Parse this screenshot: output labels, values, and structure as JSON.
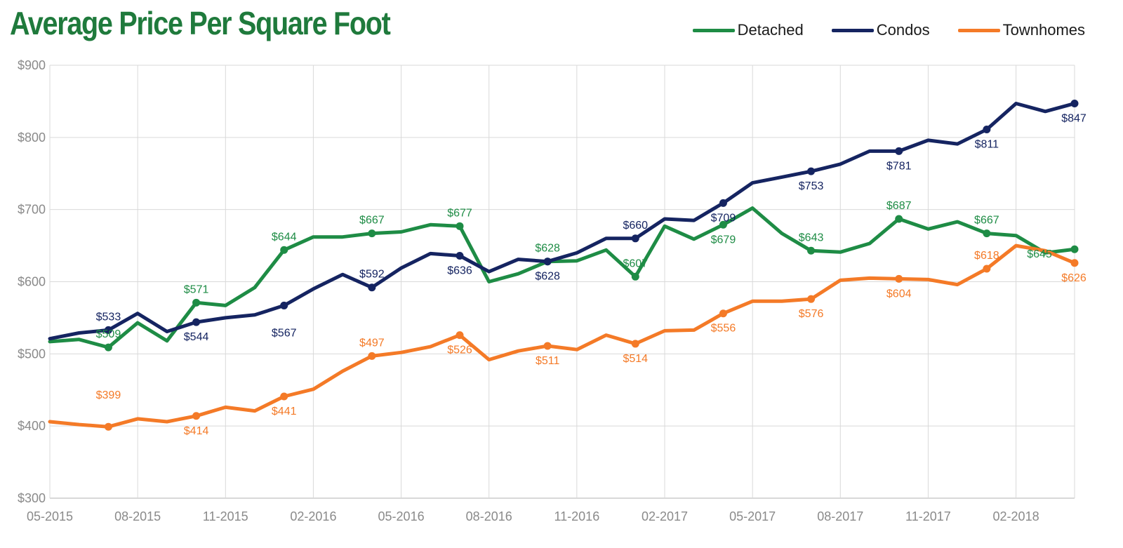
{
  "chart_data": {
    "type": "line",
    "title": "Average Price Per Square Foot",
    "xlabel": "",
    "ylabel": "",
    "ylim": [
      300,
      900
    ],
    "y_ticks": [
      300,
      400,
      500,
      600,
      700,
      800,
      900
    ],
    "y_tick_labels": [
      "$300",
      "$400",
      "$500",
      "$600",
      "$700",
      "$800",
      "$900"
    ],
    "x": [
      "05-2015",
      "06-2015",
      "07-2015",
      "08-2015",
      "09-2015",
      "10-2015",
      "11-2015",
      "12-2015",
      "01-2016",
      "02-2016",
      "03-2016",
      "04-2016",
      "05-2016",
      "06-2016",
      "07-2016",
      "08-2016",
      "09-2016",
      "10-2016",
      "11-2016",
      "12-2016",
      "01-2017",
      "02-2017",
      "03-2017",
      "04-2017",
      "05-2017",
      "06-2017",
      "07-2017",
      "08-2017",
      "09-2017",
      "10-2017",
      "11-2017",
      "12-2017",
      "01-2018",
      "02-2018",
      "03-2018",
      "04-2018"
    ],
    "x_tick_labels": [
      "05-2015",
      "08-2015",
      "11-2015",
      "02-2016",
      "05-2016",
      "08-2016",
      "11-2016",
      "02-2017",
      "05-2017",
      "08-2017",
      "11-2017",
      "02-2018"
    ],
    "grid": true,
    "legend_position": "top-right",
    "series": [
      {
        "name": "Detached",
        "color": "#1e8c45",
        "values": [
          517,
          520,
          509,
          543,
          518,
          571,
          567,
          592,
          644,
          662,
          662,
          667,
          669,
          679,
          677,
          600,
          611,
          628,
          629,
          644,
          607,
          677,
          659,
          679,
          702,
          667,
          643,
          641,
          653,
          687,
          673,
          683,
          667,
          664,
          640,
          645
        ],
        "labels": [
          {
            "i": 2,
            "text": "$509",
            "pos": "above"
          },
          {
            "i": 5,
            "text": "$571",
            "pos": "above"
          },
          {
            "i": 8,
            "text": "$644",
            "pos": "above"
          },
          {
            "i": 11,
            "text": "$667",
            "pos": "above"
          },
          {
            "i": 14,
            "text": "$677",
            "pos": "above"
          },
          {
            "i": 17,
            "text": "$628",
            "pos": "above"
          },
          {
            "i": 20,
            "text": "$607",
            "pos": "above"
          },
          {
            "i": 23,
            "text": "$679",
            "pos": "below"
          },
          {
            "i": 26,
            "text": "$643",
            "pos": "above"
          },
          {
            "i": 29,
            "text": "$687",
            "pos": "above"
          },
          {
            "i": 32,
            "text": "$667",
            "pos": "above"
          },
          {
            "i": 35,
            "text": "$645",
            "pos": "below-left"
          }
        ]
      },
      {
        "name": "Condos",
        "color": "#152461",
        "values": [
          521,
          529,
          533,
          556,
          531,
          544,
          550,
          554,
          567,
          590,
          610,
          592,
          619,
          639,
          636,
          614,
          631,
          628,
          640,
          660,
          660,
          687,
          685,
          709,
          737,
          745,
          753,
          763,
          781,
          781,
          796,
          791,
          811,
          847,
          836,
          847
        ],
        "labels": [
          {
            "i": 2,
            "text": "$533",
            "pos": "above"
          },
          {
            "i": 5,
            "text": "$544",
            "pos": "below"
          },
          {
            "i": 8,
            "text": "$567",
            "pos": "below-far"
          },
          {
            "i": 11,
            "text": "$592",
            "pos": "above"
          },
          {
            "i": 14,
            "text": "$636",
            "pos": "below"
          },
          {
            "i": 17,
            "text": "$628",
            "pos": "below"
          },
          {
            "i": 20,
            "text": "$660",
            "pos": "above"
          },
          {
            "i": 23,
            "text": "$709",
            "pos": "below"
          },
          {
            "i": 26,
            "text": "$753",
            "pos": "below"
          },
          {
            "i": 29,
            "text": "$781",
            "pos": "below"
          },
          {
            "i": 32,
            "text": "$811",
            "pos": "below"
          },
          {
            "i": 35,
            "text": "$847",
            "pos": "below"
          }
        ]
      },
      {
        "name": "Townhomes",
        "color": "#f47a27",
        "values": [
          406,
          402,
          399,
          410,
          406,
          414,
          426,
          421,
          441,
          451,
          476,
          497,
          502,
          510,
          526,
          492,
          504,
          511,
          506,
          526,
          514,
          532,
          533,
          556,
          573,
          573,
          576,
          602,
          605,
          604,
          603,
          596,
          618,
          650,
          643,
          626
        ],
        "labels": [
          {
            "i": 2,
            "text": "$399",
            "pos": "above-far"
          },
          {
            "i": 5,
            "text": "$414",
            "pos": "below"
          },
          {
            "i": 8,
            "text": "$441",
            "pos": "below"
          },
          {
            "i": 11,
            "text": "$497",
            "pos": "above"
          },
          {
            "i": 14,
            "text": "$526",
            "pos": "below"
          },
          {
            "i": 17,
            "text": "$511",
            "pos": "below"
          },
          {
            "i": 20,
            "text": "$514",
            "pos": "below"
          },
          {
            "i": 23,
            "text": "$556",
            "pos": "below"
          },
          {
            "i": 26,
            "text": "$576",
            "pos": "below"
          },
          {
            "i": 29,
            "text": "$604",
            "pos": "below"
          },
          {
            "i": 32,
            "text": "$618",
            "pos": "above"
          },
          {
            "i": 35,
            "text": "$626",
            "pos": "below"
          }
        ]
      }
    ]
  }
}
